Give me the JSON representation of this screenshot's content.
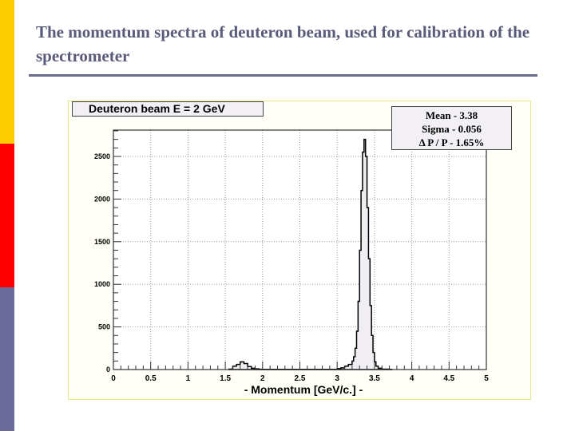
{
  "slide": {
    "title": "The momentum spectra of deuteron beam, used for calibration of the spectrometer",
    "accent_bar_colors": [
      "#ffcc00",
      "#ff0000",
      "#6b6b9e"
    ],
    "rule_color": "#6b6b8e"
  },
  "chart_data": {
    "type": "bar",
    "title": "Deuteron beam   E = 2 GeV",
    "xlabel": "- Momentum [GeV/c.] -",
    "ylabel": "",
    "xlim": [
      0,
      5
    ],
    "ylim": [
      0,
      2800
    ],
    "x_ticks": [
      "0",
      "0.5",
      "1",
      "1.5",
      "2",
      "2.5",
      "3",
      "3.5",
      "4",
      "4.5",
      "5"
    ],
    "y_ticks": [
      "0",
      "500",
      "1000",
      "1500",
      "2000",
      "2500"
    ],
    "grid": true,
    "stats": {
      "mean": "Mean - 3.38",
      "sigma": "Sigma - 0.056",
      "resolution": "Δ P / P - 1.65%"
    },
    "histogram": {
      "x": [
        1.55,
        1.6,
        1.65,
        1.7,
        1.75,
        1.8,
        1.85,
        1.9,
        1.95,
        2.0,
        2.5,
        3.0,
        3.05,
        3.1,
        3.15,
        3.2,
        3.22,
        3.24,
        3.26,
        3.28,
        3.3,
        3.32,
        3.34,
        3.36,
        3.38,
        3.4,
        3.42,
        3.44,
        3.46,
        3.48,
        3.5,
        3.52,
        3.55,
        3.6,
        3.7
      ],
      "values": [
        5,
        40,
        60,
        90,
        70,
        35,
        15,
        8,
        4,
        2,
        2,
        10,
        20,
        40,
        60,
        100,
        150,
        250,
        450,
        800,
        1400,
        2100,
        2550,
        2700,
        2500,
        1900,
        1300,
        750,
        400,
        200,
        90,
        40,
        15,
        5,
        2
      ]
    }
  },
  "stats_box": {
    "mean": "Mean - 3.38",
    "sigma": "Sigma - 0.056",
    "dpp": "Δ P / P - 1.65%"
  },
  "axis": {
    "x_ticks": [
      "0",
      "0.5",
      "1",
      "1.5",
      "2",
      "2.5",
      "3",
      "3.5",
      "4",
      "4.5",
      "5"
    ],
    "y_ticks": [
      "0",
      "500",
      "1000",
      "1500",
      "2000",
      "2500"
    ],
    "xlabel": "- Momentum [GeV/c.] -"
  },
  "chart_title": "Deuteron beam   E = 2 GeV"
}
